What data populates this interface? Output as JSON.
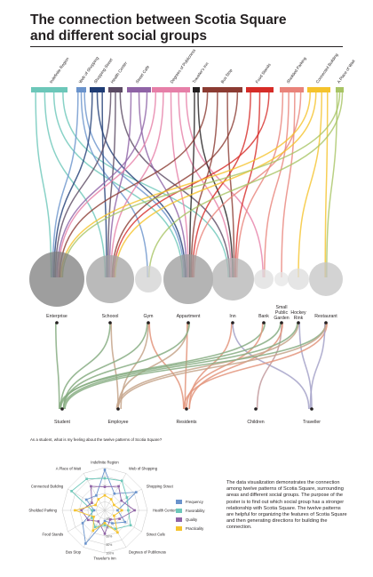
{
  "title_line1": "The connection between Scotia Square",
  "title_line2": "and different social groups",
  "patterns": [
    {
      "label": "Indefinite Region",
      "color": "#6cc7b9"
    },
    {
      "label": "Web of Shopping",
      "color": "#6a93cc"
    },
    {
      "label": "Shopping Street",
      "color": "#1f3c74"
    },
    {
      "label": "Health Center",
      "color": "#5b4a63"
    },
    {
      "label": "Street Cafe",
      "color": "#8f63a6"
    },
    {
      "label": "Degrees of Publicness",
      "color": "#e67fa8"
    },
    {
      "label": "Traveler's Inn",
      "color": "#231f20"
    },
    {
      "label": "Bus Stop",
      "color": "#8b3b32"
    },
    {
      "label": "Food Stands",
      "color": "#d62b27"
    },
    {
      "label": "Sheilded Parking",
      "color": "#e9837a"
    },
    {
      "label": "Connected Building",
      "color": "#f5c32c"
    },
    {
      "label": "A Place of Wait",
      "color": "#a8c464"
    }
  ],
  "places": [
    {
      "label": "Enterprise",
      "color": "#7d7d7d"
    },
    {
      "label": "Schoool",
      "color": "#a3a3a3"
    },
    {
      "label": "Gym",
      "color": "#d2d2d2"
    },
    {
      "label": "Appartment",
      "color": "#9b9b9b"
    },
    {
      "label": "Inn",
      "color": "#b3b3b3"
    },
    {
      "label": "Bank",
      "color": "#dedede"
    },
    {
      "label": "Small Public Garden",
      "color": "#e6e6e6"
    },
    {
      "label": "Hockey Rink",
      "color": "#dcdcdc"
    },
    {
      "label": "Restaurant",
      "color": "#c4c4c4"
    }
  ],
  "groups": [
    {
      "label": "Student",
      "color": "#87ad82"
    },
    {
      "label": "Employee",
      "color": "#c6a48b"
    },
    {
      "label": "Residents",
      "color": "#e3957d"
    },
    {
      "label": "Children",
      "color": "#c29a9e"
    },
    {
      "label": "Traveller",
      "color": "#a6a3c9"
    }
  ],
  "radar": {
    "question": "As a student, what is my feeling about the twelve patterns of Scotia Square?",
    "tick_labels": [
      "20%",
      "40%",
      "60%",
      "80%",
      "100%"
    ],
    "series": [
      {
        "name": "Frequency",
        "color": "#6a93cc",
        "values": [
          0.95,
          0.45,
          0.85,
          0.3,
          0.55,
          0.35,
          0.25,
          0.9,
          0.6,
          0.25,
          0.5,
          0.4
        ]
      },
      {
        "name": "Favorability",
        "color": "#6cc7b9",
        "values": [
          0.75,
          0.8,
          0.6,
          0.55,
          0.7,
          0.5,
          0.35,
          0.45,
          0.35,
          0.3,
          0.9,
          0.85
        ]
      },
      {
        "name": "Quality",
        "color": "#8f63a6",
        "values": [
          0.55,
          0.65,
          0.45,
          0.7,
          0.4,
          0.25,
          0.55,
          0.3,
          0.45,
          0.55,
          0.35,
          0.65
        ]
      },
      {
        "name": "Practicality",
        "color": "#f5c32c",
        "values": [
          0.35,
          0.3,
          0.25,
          0.4,
          0.25,
          0.6,
          0.3,
          0.55,
          0.3,
          0.7,
          0.25,
          0.3
        ]
      }
    ]
  },
  "description": "The data visualization demonstrates the connection among twelve patterns of Scotia Square, surrounding areas and different social groups. The purpose of the poster is to find out which social group has a stronger relationship with Scotia Square. The twelve patterns are helpful for organizing the features of Scotia Square and then generating directions for building the connection."
}
